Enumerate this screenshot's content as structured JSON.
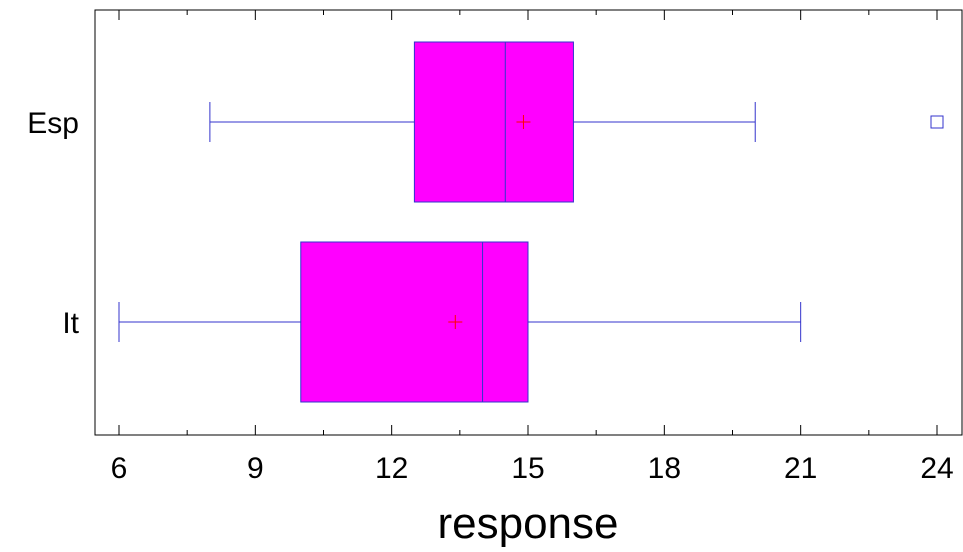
{
  "chart_data": {
    "type": "boxplot",
    "orientation": "horizontal",
    "xlabel": "response",
    "ylabel": "",
    "xlim": [
      5,
      24.5
    ],
    "xticks": [
      6,
      9,
      12,
      15,
      18,
      21,
      24
    ],
    "xtick_labels": [
      "6",
      "9",
      "12",
      "15",
      "18",
      "21",
      "24"
    ],
    "grid": false,
    "categories": [
      "Esp",
      "It"
    ],
    "boxes": [
      {
        "category": "Esp",
        "whisker_low": 8,
        "q1": 12.5,
        "median": 14.5,
        "q3": 16,
        "whisker_high": 20,
        "mean": 14.9,
        "outliers": [
          24
        ]
      },
      {
        "category": "It",
        "whisker_low": 6,
        "q1": 10,
        "median": 14,
        "q3": 15,
        "whisker_high": 21,
        "mean": 13.4,
        "outliers": []
      }
    ],
    "colors": {
      "box_fill": "#ff00ff",
      "box_stroke": "#3333cc",
      "whisker": "#3333cc",
      "mean_marker": "#ff0000",
      "outlier": "#3333cc",
      "axis": "#000000"
    }
  }
}
